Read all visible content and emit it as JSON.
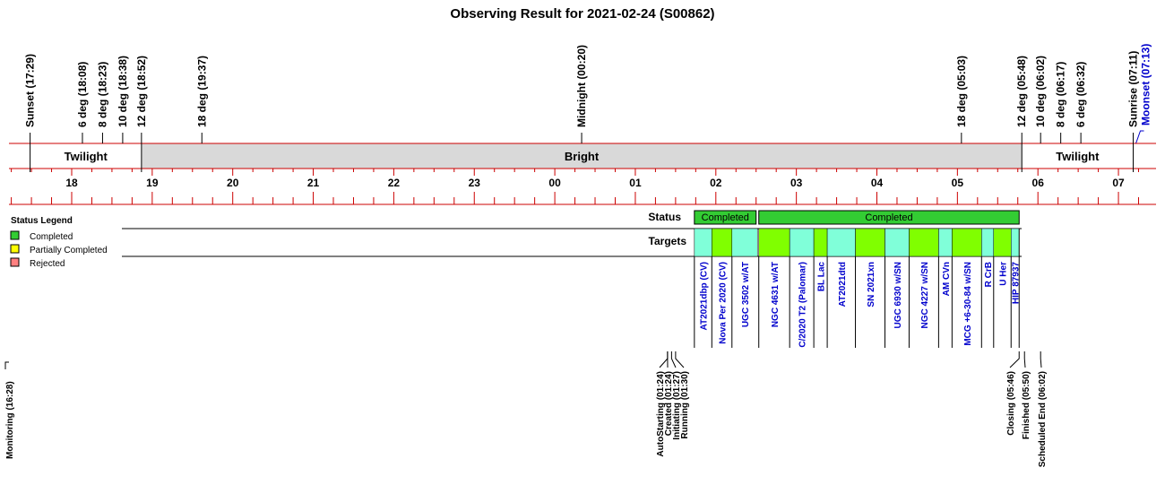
{
  "title": "Observing Result for 2021-02-24 (S00862)",
  "colors": {
    "completed": "#33cc33",
    "partial": "#ffff00",
    "rejected": "#ff8080",
    "bright_band": "#d9d9d9",
    "target_green": "#80ff00",
    "target_cyan": "#80ffd9",
    "axis_red": "#cc0000",
    "link_blue": "#0000cc"
  },
  "sky_events": [
    {
      "label": "Sunset (17:29)",
      "time": "17:29"
    },
    {
      "label": "6 deg (18:08)",
      "time": "18:08"
    },
    {
      "label": "8 deg (18:23)",
      "time": "18:23"
    },
    {
      "label": "10 deg (18:38)",
      "time": "18:38"
    },
    {
      "label": "12 deg (18:52)",
      "time": "18:52"
    },
    {
      "label": "18 deg (19:37)",
      "time": "19:37"
    },
    {
      "label": "Midnight (00:20)",
      "time": "00:20"
    },
    {
      "label": "18 deg (05:03)",
      "time": "05:03"
    },
    {
      "label": "12 deg (05:48)",
      "time": "05:48"
    },
    {
      "label": "10 deg (06:02)",
      "time": "06:02"
    },
    {
      "label": "8 deg (06:17)",
      "time": "06:17"
    },
    {
      "label": "6 deg (06:32)",
      "time": "06:32"
    },
    {
      "label": "Sunrise (07:11)",
      "time": "07:11"
    }
  ],
  "moon_event": {
    "label": "Moonset (07:13)",
    "time": "07:13"
  },
  "bands": [
    {
      "label": "Twilight",
      "start": "17:29",
      "end": "18:52",
      "kind": "twilight"
    },
    {
      "label": "Bright",
      "start": "18:52",
      "end": "05:48",
      "kind": "bright"
    },
    {
      "label": "Twilight",
      "start": "05:48",
      "end": "07:11",
      "kind": "twilight"
    }
  ],
  "hour_labels": [
    "18",
    "19",
    "20",
    "21",
    "22",
    "23",
    "00",
    "01",
    "02",
    "03",
    "04",
    "05",
    "06",
    "07"
  ],
  "rows": {
    "status": "Status",
    "targets": "Targets"
  },
  "status_blocks": [
    {
      "label": "Completed",
      "start": "01:44",
      "end": "02:30",
      "status": "completed"
    },
    {
      "label": "Completed",
      "start": "02:32",
      "end": "05:46",
      "status": "completed"
    }
  ],
  "targets": [
    {
      "name": "AT2021dbp (CV)",
      "start": "01:44",
      "end": "01:57",
      "color": "cyan"
    },
    {
      "name": "Nova Per 2020 (CV)",
      "start": "01:57",
      "end": "02:12",
      "color": "green"
    },
    {
      "name": "UGC 3502 w/AT",
      "start": "02:12",
      "end": "02:31",
      "color": "cyan"
    },
    {
      "name": "NGC 4631 w/AT",
      "start": "02:32",
      "end": "02:55",
      "color": "green"
    },
    {
      "name": "C/2020 T2 (Palomar)",
      "start": "02:55",
      "end": "03:13",
      "color": "cyan"
    },
    {
      "name": "BL Lac",
      "start": "03:13",
      "end": "03:23",
      "color": "green"
    },
    {
      "name": "AT2021dtd",
      "start": "03:23",
      "end": "03:44",
      "color": "cyan"
    },
    {
      "name": "SN 2021xn",
      "start": "03:44",
      "end": "04:06",
      "color": "green"
    },
    {
      "name": "UGC 6930 w/SN",
      "start": "04:06",
      "end": "04:24",
      "color": "cyan"
    },
    {
      "name": "NGC 4227 w/SN",
      "start": "04:24",
      "end": "04:46",
      "color": "green"
    },
    {
      "name": "AM CVn",
      "start": "04:46",
      "end": "04:56",
      "color": "cyan"
    },
    {
      "name": "MCG +6-30-84 w/SN",
      "start": "04:56",
      "end": "05:18",
      "color": "green"
    },
    {
      "name": "R CrB",
      "start": "05:18",
      "end": "05:27",
      "color": "cyan"
    },
    {
      "name": "U Her",
      "start": "05:27",
      "end": "05:40",
      "color": "green"
    },
    {
      "name": "HIP 87937",
      "start": "05:40",
      "end": "05:46",
      "color": "cyan"
    }
  ],
  "legend": {
    "title": "Status Legend",
    "items": [
      {
        "label": "Completed",
        "color": "#33cc33"
      },
      {
        "label": "Partially Completed",
        "color": "#ffff00"
      },
      {
        "label": "Rejected",
        "color": "#ff8080"
      }
    ]
  },
  "lifecycle": [
    {
      "label": "Monitoring (16:28)",
      "time": "16:28"
    },
    {
      "label": "AutoStarting (01:24)",
      "time": "01:24"
    },
    {
      "label": "Created (01:24)",
      "time": "01:24"
    },
    {
      "label": "Initiating (01:27)",
      "time": "01:27"
    },
    {
      "label": "Running (01:30)",
      "time": "01:30"
    },
    {
      "label": "Closing (05:46)",
      "time": "05:46"
    },
    {
      "label": "Finished (05:50)",
      "time": "05:50"
    },
    {
      "label": "Scheduled End (06:02)",
      "time": "06:02"
    }
  ]
}
